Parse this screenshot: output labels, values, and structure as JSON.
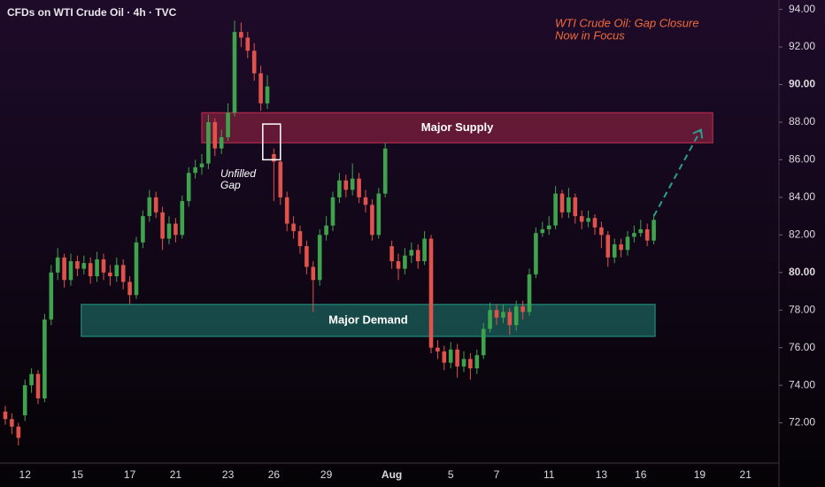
{
  "chart_data": {
    "type": "candlestick",
    "title": "CFDs on WTI Crude Oil · 4h · TVC",
    "annotation": [
      "WTI Crude Oil: Gap Closure",
      "Now in Focus"
    ],
    "categories": [
      null,
      null,
      null,
      "12",
      null,
      null,
      null,
      null,
      null,
      null,
      null,
      "15",
      null,
      null,
      null,
      null,
      null,
      null,
      null,
      "17",
      null,
      null,
      null,
      null,
      null,
      null,
      "21",
      null,
      null,
      null,
      null,
      null,
      null,
      null,
      "23",
      null,
      null,
      null,
      null,
      null,
      null,
      "26",
      null,
      null,
      null,
      null,
      null,
      null,
      null,
      "29",
      null,
      null,
      null,
      null,
      null,
      null,
      null,
      null,
      null,
      "Aug",
      null,
      null,
      null,
      null,
      null,
      null,
      null,
      null,
      "5",
      null,
      null,
      null,
      null,
      null,
      null,
      "7",
      null,
      null,
      null,
      null,
      null,
      null,
      null,
      "11",
      null,
      null,
      null,
      null,
      null,
      null,
      null,
      "13",
      null,
      null,
      null,
      null,
      null,
      "16",
      null,
      null,
      null,
      null,
      null,
      null,
      null,
      null,
      "19",
      null,
      null,
      null,
      null,
      null,
      null,
      "21"
    ],
    "open": [
      72.6,
      72.2,
      71.8,
      72.4,
      74.0,
      74.6,
      73.3,
      77.5,
      80.0,
      80.8,
      79.6,
      80.6,
      80.2,
      80.5,
      79.8,
      80.7,
      80.0,
      79.8,
      80.4,
      79.5,
      78.8,
      81.6,
      83.0,
      84.0,
      83.2,
      81.8,
      82.6,
      82.0,
      83.8,
      85.3,
      85.6,
      85.8,
      88.0,
      86.6,
      87.2,
      88.5,
      92.8,
      92.5,
      91.8,
      90.6,
      89.0,
      86.3,
      85.9,
      84.0,
      82.6,
      82.2,
      81.4,
      80.3,
      79.6,
      82.0,
      82.5,
      84.0,
      84.9,
      84.4,
      85.0,
      84.0,
      83.6,
      82.0,
      84.2,
      81.4,
      80.6,
      80.2,
      80.9,
      81.2,
      80.6,
      81.8,
      76.0,
      75.8,
      75.2,
      75.9,
      75.0,
      75.4,
      74.9,
      75.6,
      77.0,
      78.0,
      77.6,
      77.9,
      77.2,
      78.2,
      77.9,
      79.9,
      82.1,
      82.3,
      82.5,
      84.2,
      83.2,
      84.0,
      83.0,
      82.7,
      82.9,
      82.4,
      82.0,
      80.8,
      81.5,
      81.2,
      81.9,
      82.1,
      82.3,
      81.7,
      null,
      null,
      null,
      null,
      null,
      null,
      null,
      null,
      null,
      null,
      null,
      null,
      null,
      null
    ],
    "high": [
      72.9,
      72.5,
      72.0,
      74.3,
      74.9,
      74.8,
      77.8,
      80.4,
      81.3,
      81.0,
      81.0,
      80.9,
      80.9,
      80.8,
      81.1,
      81.0,
      80.4,
      80.8,
      80.7,
      79.8,
      81.9,
      83.3,
      84.4,
      84.3,
      83.5,
      83.0,
      82.9,
      84.1,
      85.6,
      86.0,
      86.3,
      88.4,
      88.2,
      87.6,
      89.0,
      93.4,
      93.3,
      92.8,
      92.2,
      91.0,
      90.5,
      86.6,
      86.1,
      84.3,
      83.0,
      82.5,
      81.7,
      80.6,
      82.3,
      83.0,
      84.3,
      85.3,
      85.2,
      85.8,
      85.3,
      84.4,
      83.9,
      84.5,
      86.9,
      81.7,
      81.0,
      81.3,
      81.6,
      81.5,
      82.2,
      82.0,
      76.4,
      76.1,
      76.3,
      76.2,
      75.8,
      75.7,
      75.9,
      77.3,
      78.4,
      78.3,
      78.3,
      78.1,
      78.5,
      78.5,
      80.2,
      82.4,
      82.7,
      83.0,
      84.6,
      84.4,
      84.5,
      84.2,
      83.3,
      83.3,
      83.1,
      82.7,
      82.2,
      81.8,
      81.8,
      82.2,
      82.5,
      82.8,
      82.6,
      83.1,
      null,
      null,
      null,
      null,
      null,
      null,
      null,
      null,
      null,
      null,
      null,
      null,
      null,
      null
    ],
    "low": [
      71.9,
      71.4,
      70.8,
      72.1,
      73.6,
      73.0,
      73.1,
      77.2,
      79.6,
      79.2,
      79.3,
      79.8,
      79.9,
      79.4,
      79.5,
      79.6,
      79.3,
      79.5,
      79.1,
      78.3,
      78.6,
      81.3,
      82.7,
      82.9,
      81.2,
      81.5,
      81.6,
      81.8,
      83.5,
      85.0,
      85.2,
      85.5,
      86.2,
      86.3,
      87.0,
      88.3,
      92.0,
      91.4,
      90.2,
      88.6,
      88.7,
      83.8,
      83.6,
      82.2,
      81.8,
      81.0,
      79.9,
      77.9,
      79.3,
      81.7,
      82.2,
      83.7,
      84.0,
      84.1,
      83.7,
      83.2,
      81.7,
      81.8,
      84.0,
      80.2,
      79.6,
      79.9,
      80.5,
      80.2,
      80.4,
      75.7,
      75.4,
      74.8,
      74.9,
      74.4,
      74.7,
      74.3,
      74.6,
      75.4,
      76.8,
      77.2,
      77.3,
      76.7,
      76.9,
      77.5,
      77.7,
      79.7,
      81.9,
      82.0,
      82.3,
      82.9,
      82.9,
      82.6,
      82.3,
      82.4,
      82.0,
      81.3,
      80.3,
      80.5,
      80.8,
      80.9,
      81.6,
      81.9,
      81.4,
      81.5,
      null,
      null,
      null,
      null,
      null,
      null,
      null,
      null,
      null,
      null,
      null,
      null,
      null,
      null
    ],
    "close": [
      72.2,
      71.8,
      71.2,
      74.0,
      74.6,
      73.3,
      77.5,
      80.0,
      80.8,
      79.6,
      80.6,
      80.2,
      80.5,
      79.8,
      80.7,
      80.0,
      79.8,
      80.4,
      79.5,
      78.8,
      81.6,
      83.0,
      84.0,
      83.2,
      81.8,
      82.6,
      82.0,
      83.8,
      85.3,
      85.6,
      85.8,
      88.0,
      86.6,
      87.2,
      88.5,
      92.8,
      92.5,
      91.8,
      90.6,
      89.0,
      89.9,
      85.9,
      84.0,
      82.6,
      82.2,
      81.4,
      80.3,
      79.6,
      82.0,
      82.5,
      84.0,
      84.9,
      84.4,
      85.0,
      84.0,
      83.6,
      82.0,
      84.2,
      86.6,
      80.6,
      80.2,
      80.9,
      81.2,
      80.6,
      81.8,
      76.0,
      75.8,
      75.2,
      75.9,
      75.0,
      75.4,
      74.9,
      75.6,
      77.0,
      78.0,
      77.6,
      77.9,
      77.2,
      78.2,
      77.9,
      79.9,
      82.1,
      82.3,
      82.5,
      84.2,
      83.2,
      84.0,
      83.0,
      82.7,
      82.9,
      82.4,
      82.0,
      80.8,
      81.5,
      81.2,
      81.9,
      82.1,
      82.3,
      81.7,
      82.8,
      null,
      null,
      null,
      null,
      null,
      null,
      null,
      null,
      null,
      null,
      null,
      null,
      null,
      null
    ],
    "up_color": "#3fa34d",
    "down_color": "#e0524b",
    "ylim": [
      70.0,
      94.5
    ],
    "yticks": [
      {
        "value": 72,
        "label": "72.00"
      },
      {
        "value": 74,
        "label": "74.00"
      },
      {
        "value": 76,
        "label": "76.00"
      },
      {
        "value": 78,
        "label": "78.00"
      },
      {
        "value": 80,
        "label": "80.00"
      },
      {
        "value": 82,
        "label": "82.00"
      },
      {
        "value": 84,
        "label": "84.00"
      },
      {
        "value": 86,
        "label": "86.00"
      },
      {
        "value": 88,
        "label": "88.00"
      },
      {
        "value": 90,
        "label": "90.00"
      },
      {
        "value": 92,
        "label": "92.00"
      },
      {
        "value": 94,
        "label": "94.00"
      }
    ],
    "zones": [
      {
        "label": "Major Supply",
        "low": 86.9,
        "high": 88.5,
        "x": [
          30,
          108
        ],
        "color": "#b02a4a"
      },
      {
        "label": "Major Demand",
        "low": 76.6,
        "high": 78.3,
        "x": [
          11.6,
          99.2
        ],
        "color": "#1f8c7e"
      }
    ],
    "gap_box": {
      "label": [
        "Unfilled",
        "Gap"
      ],
      "low": 86.0,
      "high": 87.9,
      "x": [
        39.3,
        42
      ]
    },
    "projection": {
      "from": [
        99,
        83.0
      ],
      "to": [
        106.2,
        87.6
      ],
      "color": "#2a9d8f"
    }
  }
}
